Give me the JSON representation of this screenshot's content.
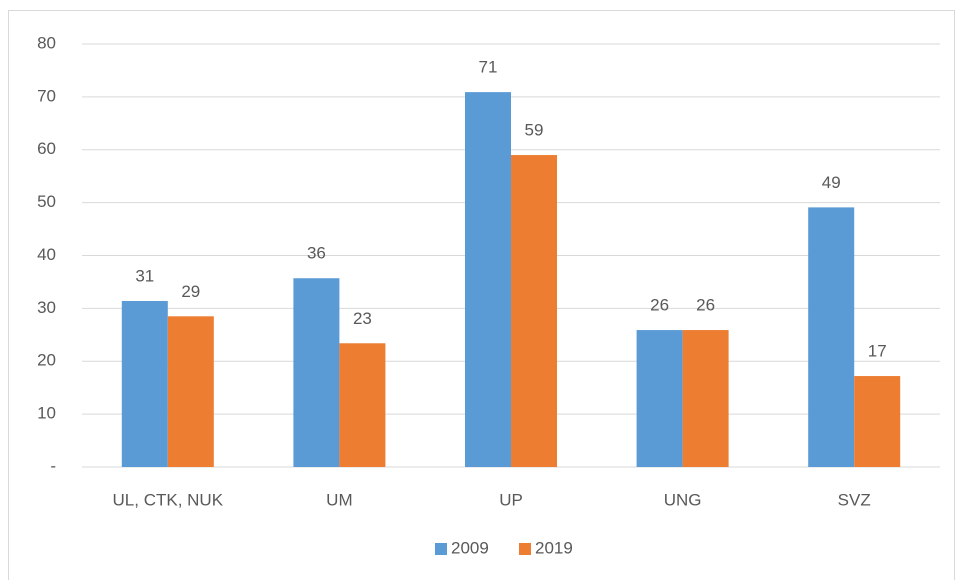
{
  "chart_data": {
    "type": "bar",
    "categories": [
      "UL, CTK, NUK",
      "UM",
      "UP",
      "UNG",
      "SVZ"
    ],
    "series": [
      {
        "name": "2009",
        "color": "#5b9bd5",
        "values": [
          31.4,
          35.7,
          70.9,
          25.9,
          49.1
        ],
        "value_labels": [
          "31",
          "36",
          "71",
          "26",
          "49"
        ]
      },
      {
        "name": "2019",
        "color": "#ed7d31",
        "values": [
          28.5,
          23.4,
          59.0,
          25.9,
          17.2
        ],
        "value_labels": [
          "29",
          "23",
          "59",
          "26",
          "17"
        ]
      }
    ],
    "ylim": [
      0,
      80
    ],
    "yticks": [
      {
        "value": 0,
        "label": "-"
      },
      10,
      20,
      30,
      40,
      50,
      60,
      70,
      80
    ],
    "grid": true,
    "legend": "bottom"
  }
}
